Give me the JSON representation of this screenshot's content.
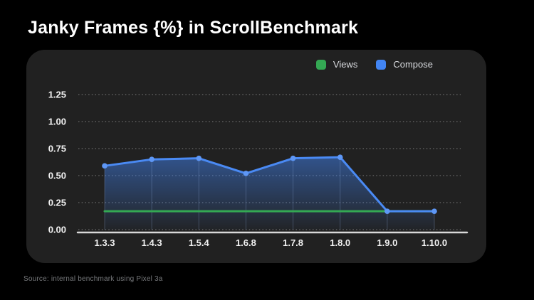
{
  "title": "Janky Frames {%} in ScrollBenchmark",
  "source_note": "Source: internal benchmark using Pixel 3a",
  "colors": {
    "background": "#000000",
    "panel": "#212121",
    "title_text": "#ffffff",
    "tick_text": "#f2f2f2",
    "legend_text": "#dadce0",
    "source_text": "#77797c",
    "gridline": "rgba(255,255,255,0.42)",
    "axis_line": "#d9d9d9",
    "views_line": "#34a853",
    "compose_line": "#4a8af4",
    "compose_dot": "#5e97f6",
    "dropline": "rgba(151,178,231,0.28)",
    "area_top": "rgba(66,133,244,0.50)",
    "area_bottom": "rgba(66,133,244,0.03)"
  },
  "chart_data": {
    "type": "line",
    "title": "Janky Frames {%} in ScrollBenchmark",
    "categories": [
      "1.3.3",
      "1.4.3",
      "1.5.4",
      "1.6.8",
      "1.7.8",
      "1.8.0",
      "1.9.0",
      "1.10.0"
    ],
    "series": [
      {
        "name": "Views",
        "color": "#34a853",
        "values": [
          0.17,
          0.17,
          0.17,
          0.17,
          0.17,
          0.17,
          0.17,
          0.17
        ],
        "markers": false,
        "area": false
      },
      {
        "name": "Compose",
        "color": "#4285f4",
        "values": [
          0.59,
          0.65,
          0.66,
          0.52,
          0.66,
          0.67,
          0.17,
          0.17
        ],
        "markers": true,
        "area": true
      }
    ],
    "y_ticks": [
      0.0,
      0.25,
      0.5,
      0.75,
      1.0,
      1.25
    ],
    "y_tick_labels": [
      "0.00",
      "0.25",
      "0.50",
      "0.75",
      "1.00",
      "1.25"
    ],
    "ylim": [
      0,
      1.25
    ],
    "grid": "dotted-horizontal",
    "legend_position": "top-right"
  }
}
